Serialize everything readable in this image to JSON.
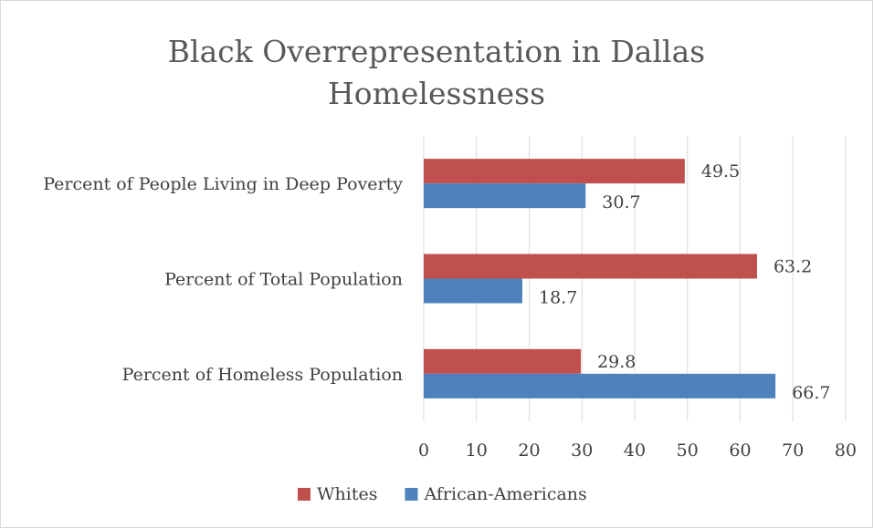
{
  "chart_data": {
    "type": "bar",
    "orientation": "horizontal",
    "title_lines": [
      "Black Overrepresentation in Dallas",
      "Homelessness"
    ],
    "categories": [
      "Percent of People Living in Deep Poverty",
      "Percent of Total Population",
      "Percent of Homeless Population"
    ],
    "series": [
      {
        "name": "Whites",
        "color": "#c0504d",
        "values": [
          49.5,
          63.2,
          29.8
        ]
      },
      {
        "name": "African-Americans",
        "color": "#4f81bd",
        "values": [
          30.7,
          18.7,
          66.7
        ]
      }
    ],
    "xlim": [
      0,
      80
    ],
    "xticks": [
      "0",
      "10",
      "20",
      "30",
      "40",
      "50",
      "60",
      "70",
      "80"
    ],
    "grid": "vertical",
    "legend_position": "bottom"
  }
}
